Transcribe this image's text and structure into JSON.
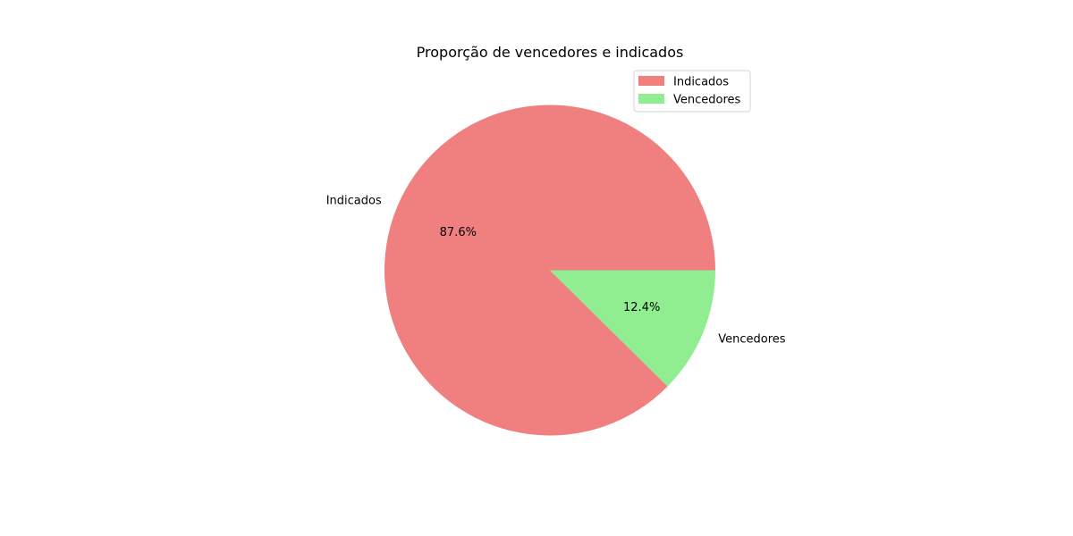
{
  "chart_data": {
    "type": "pie",
    "title": "Proporção de vencedores e indicados",
    "categories": [
      "Indicados",
      "Vencedores"
    ],
    "values": [
      87.6,
      12.4
    ],
    "value_labels": [
      "87.6%",
      "12.4%"
    ],
    "colors": [
      "#f08080",
      "#90ee90"
    ],
    "start_angle_deg": 0,
    "direction": "counterclockwise",
    "legend": {
      "placement": "upper-right",
      "entries": [
        "Indicados",
        "Vencedores"
      ]
    }
  }
}
